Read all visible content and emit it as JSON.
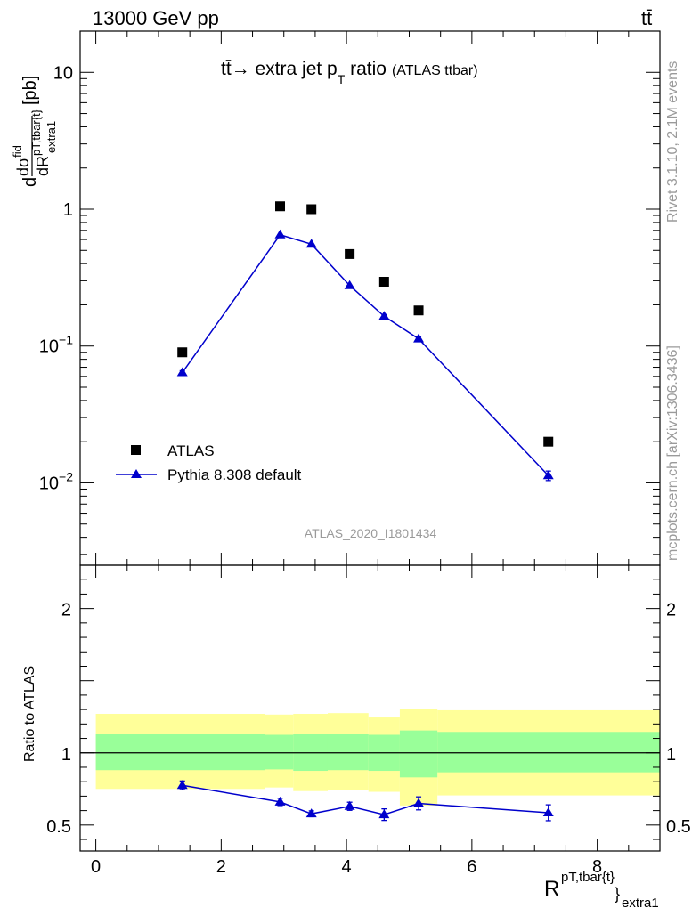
{
  "header": {
    "energy_label": "13000 GeV pp",
    "process_label": "tt̄"
  },
  "plot_title": {
    "main": "tt̄→ extra jet p",
    "sub": "T",
    "rest": " ratio",
    "tag": "(ATLAS ttbar)"
  },
  "side_labels": {
    "rivet": "Rivet 3.1.10,  2.1M events",
    "mcplots": "mcplots.cern.ch [arXiv:1306.3436]"
  },
  "analysis_id": "ATLAS_2020_I1801434",
  "y_axis_main": {
    "d": "d",
    "num": "dσ",
    "num_sup": "fid",
    "den": "dR",
    "den_sup": "pT,tbar{t}",
    "den_sub": "extra1",
    "unit": "[pb]"
  },
  "y_axis_ratio_label": "Ratio to ATLAS",
  "x_axis": {
    "main": "R",
    "sup": "pT,tbar{t}",
    "brace": "}",
    "sub": "extra1"
  },
  "legend": {
    "atlas": "ATLAS",
    "pythia": "Pythia 8.308 default"
  },
  "colors": {
    "mc": "#0000cc",
    "data": "#000000",
    "band_inner": "#99ff99",
    "band_outer": "#ffff99"
  },
  "chart_data": {
    "type": "scatter",
    "x_range": [
      -0.25,
      9.0
    ],
    "x_ticks": [
      0,
      2,
      4,
      6,
      8
    ],
    "main": {
      "y_scale": "log",
      "y_range": [
        0.0025,
        20
      ],
      "y_ticks": [
        {
          "value": 0.01,
          "label": "10",
          "exp": "−2"
        },
        {
          "value": 0.1,
          "label": "10",
          "exp": "−1"
        },
        {
          "value": 1,
          "label": "1",
          "exp": ""
        },
        {
          "value": 10,
          "label": "10",
          "exp": ""
        }
      ],
      "series": [
        {
          "name": "ATLAS",
          "marker": "square",
          "x": [
            1.38,
            2.94,
            3.44,
            4.05,
            4.6,
            5.15,
            7.22
          ],
          "y": [
            0.09,
            1.05,
            1.0,
            0.47,
            0.295,
            0.182,
            0.02
          ]
        },
        {
          "name": "Pythia 8.308 default",
          "marker": "triangle",
          "x": [
            1.38,
            2.94,
            3.44,
            4.05,
            4.6,
            5.15,
            7.22
          ],
          "y": [
            0.064,
            0.65,
            0.555,
            0.277,
            0.165,
            0.113,
            0.0113
          ],
          "yerr": [
            0.002,
            0.015,
            0.012,
            0.007,
            0.005,
            0.004,
            0.0009
          ]
        }
      ]
    },
    "ratio": {
      "y_scale": "linear",
      "y_range": [
        0.32,
        2.3
      ],
      "y_ticks": [
        0.5,
        1,
        2
      ],
      "reference_line": 1,
      "bands": [
        {
          "x0": 0.0,
          "x1": 2.7,
          "inner": [
            0.88,
            1.13
          ],
          "outer": [
            0.75,
            1.27
          ]
        },
        {
          "x0": 2.7,
          "x1": 3.15,
          "inner": [
            0.885,
            1.125
          ],
          "outer": [
            0.76,
            1.265
          ]
        },
        {
          "x0": 3.15,
          "x1": 3.7,
          "inner": [
            0.875,
            1.13
          ],
          "outer": [
            0.735,
            1.27
          ]
        },
        {
          "x0": 3.7,
          "x1": 4.35,
          "inner": [
            0.88,
            1.13
          ],
          "outer": [
            0.74,
            1.275
          ]
        },
        {
          "x0": 4.35,
          "x1": 4.85,
          "inner": [
            0.875,
            1.125
          ],
          "outer": [
            0.73,
            1.245
          ]
        },
        {
          "x0": 4.85,
          "x1": 5.45,
          "inner": [
            0.83,
            1.155
          ],
          "outer": [
            0.635,
            1.305
          ]
        },
        {
          "x0": 5.45,
          "x1": 9.0,
          "inner": [
            0.865,
            1.145
          ],
          "outer": [
            0.705,
            1.295
          ]
        }
      ],
      "series": [
        {
          "name": "Pythia 8.308 default",
          "x": [
            1.38,
            2.94,
            3.44,
            4.05,
            4.6,
            5.15,
            7.22
          ],
          "y": [
            0.775,
            0.66,
            0.578,
            0.63,
            0.572,
            0.65,
            0.585
          ],
          "yerr": [
            0.03,
            0.025,
            0.02,
            0.028,
            0.04,
            0.045,
            0.055
          ]
        }
      ]
    }
  }
}
